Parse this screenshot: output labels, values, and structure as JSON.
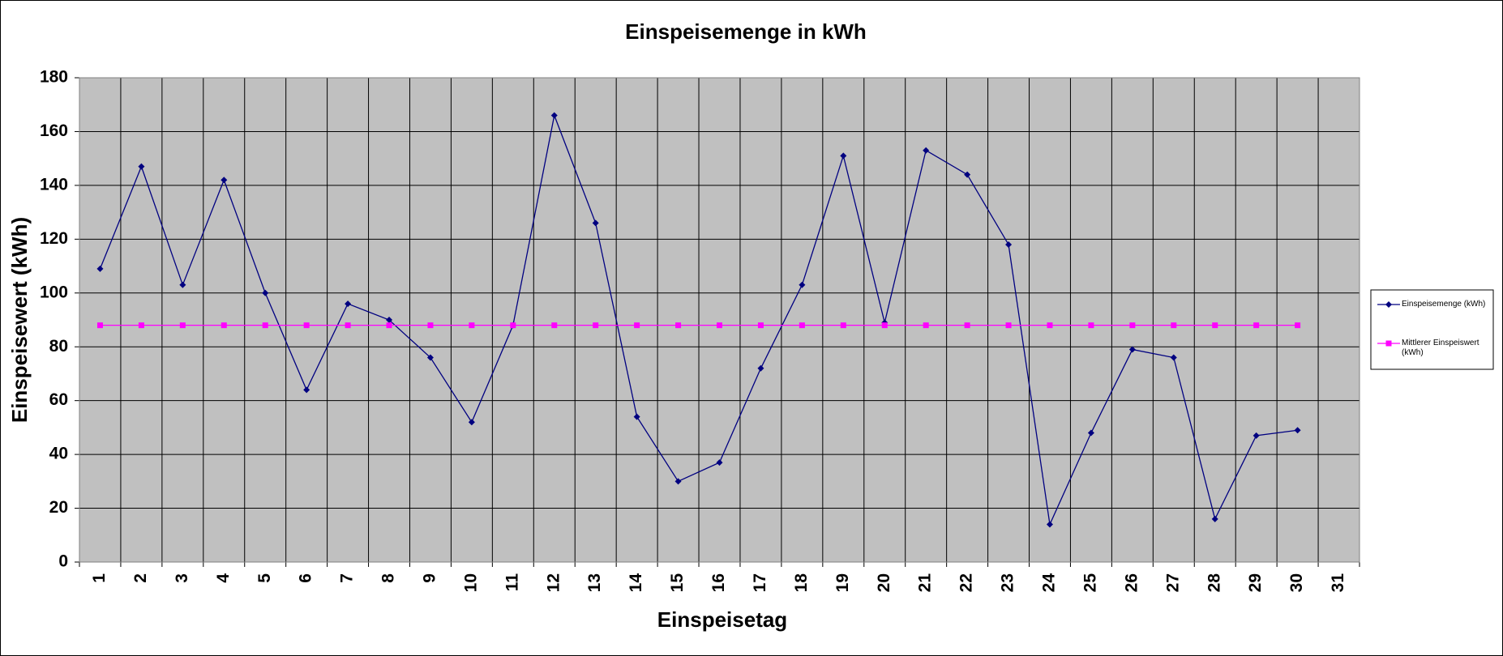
{
  "chart_data": {
    "type": "line",
    "title": "Einspeisemenge in kWh",
    "x_label": "Einspeisetag",
    "y_label": "Einspeisewert  (kWh)",
    "categories": [
      "1",
      "2",
      "3",
      "4",
      "5",
      "6",
      "7",
      "8",
      "9",
      "10",
      "11",
      "12",
      "13",
      "14",
      "15",
      "16",
      "17",
      "18",
      "19",
      "20",
      "21",
      "22",
      "23",
      "24",
      "25",
      "26",
      "27",
      "28",
      "29",
      "30",
      "31"
    ],
    "series": [
      {
        "name": "Einspeisemenge (kWh)",
        "color": "#000080",
        "marker": "diamond",
        "values": [
          109,
          147,
          103,
          142,
          100,
          64,
          96,
          90,
          76,
          52,
          88,
          166,
          126,
          54,
          30,
          37,
          72,
          103,
          151,
          89,
          153,
          144,
          118,
          14,
          48,
          79,
          76,
          16,
          47,
          49,
          null
        ]
      },
      {
        "name": "Mittlerer Einspeiswert (kWh)",
        "color": "#ff00ff",
        "marker": "square",
        "values": [
          88,
          88,
          88,
          88,
          88,
          88,
          88,
          88,
          88,
          88,
          88,
          88,
          88,
          88,
          88,
          88,
          88,
          88,
          88,
          88,
          88,
          88,
          88,
          88,
          88,
          88,
          88,
          88,
          88,
          88,
          null
        ]
      }
    ],
    "ylim": [
      0,
      180
    ],
    "yticks": [
      0,
      20,
      40,
      60,
      80,
      100,
      120,
      140,
      160,
      180
    ],
    "grid": true,
    "legend": "right"
  }
}
